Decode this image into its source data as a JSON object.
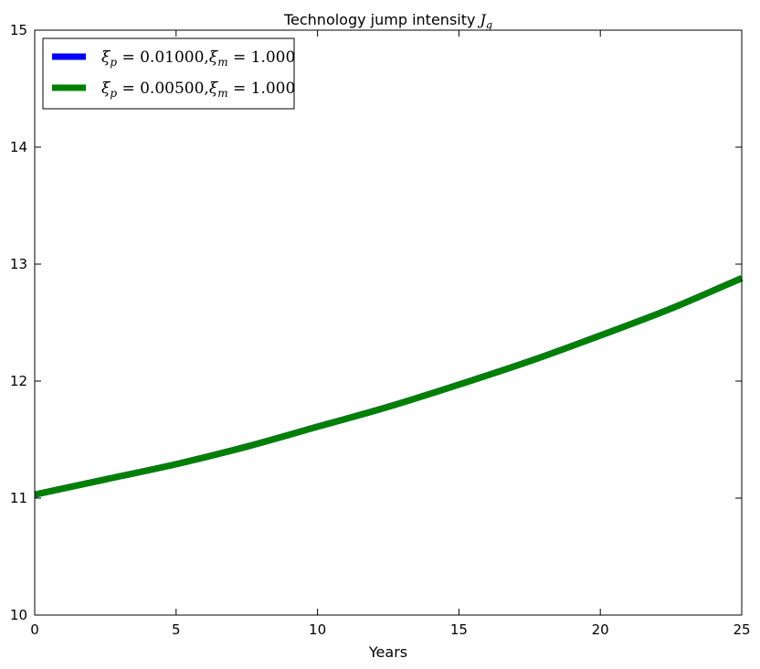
{
  "chart_data": {
    "type": "line",
    "title_prefix": "Technology jump intensity ",
    "title_math": "J",
    "title_sub": "g",
    "xlabel": "Years",
    "ylabel": "",
    "xlim": [
      0,
      25
    ],
    "ylim": [
      10,
      15
    ],
    "xticks": [
      0,
      5,
      10,
      15,
      20,
      25
    ],
    "yticks": [
      10,
      11,
      12,
      13,
      14,
      15
    ],
    "grid": false,
    "legend_position": "top-left",
    "series": [
      {
        "name": "ξp = 0.01000,ξm = 1.000",
        "color": "#0000ff",
        "x": [
          0,
          2.5,
          5,
          7.5,
          10,
          12.5,
          15,
          17.5,
          20,
          22.5,
          25
        ],
        "values": [
          11.03,
          11.16,
          11.29,
          11.44,
          11.61,
          11.78,
          11.97,
          12.17,
          12.39,
          12.62,
          12.88
        ]
      },
      {
        "name": "ξp = 0.00500,ξm = 1.000",
        "color": "#008000",
        "x": [
          0,
          2.5,
          5,
          7.5,
          10,
          12.5,
          15,
          17.5,
          20,
          22.5,
          25
        ],
        "values": [
          11.03,
          11.16,
          11.29,
          11.44,
          11.61,
          11.78,
          11.97,
          12.17,
          12.39,
          12.62,
          12.88
        ]
      }
    ],
    "legend": [
      {
        "sym": "ξ",
        "sub": "p",
        "val": " = 0.01000,",
        "sym2": "ξ",
        "sub2": "m",
        "val2": " = 1.000",
        "color": "#0000ff"
      },
      {
        "sym": "ξ",
        "sub": "p",
        "val": " = 0.00500,",
        "sym2": "ξ",
        "sub2": "m",
        "val2": " = 1.000",
        "color": "#008000"
      }
    ]
  }
}
